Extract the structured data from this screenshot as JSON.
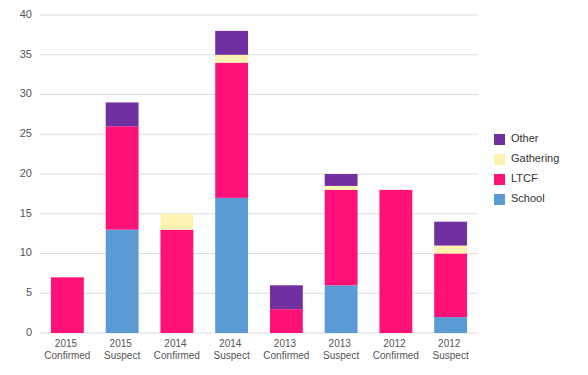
{
  "chart_data": {
    "type": "bar",
    "stacked": true,
    "categories": [
      "2015 Confirmed",
      "2015 Suspect",
      "2014 Confirmed",
      "2014 Suspect",
      "2013 Confirmed",
      "2013 Suspect",
      "2012 Confirmed",
      "2012 Suspect"
    ],
    "series": [
      {
        "name": "School",
        "color": "#5b9bd5",
        "values": [
          0,
          13,
          0,
          17,
          0,
          6,
          0,
          2
        ]
      },
      {
        "name": "LTCF",
        "color": "#ff1177",
        "values": [
          7,
          13,
          13,
          17,
          3,
          12,
          18,
          8
        ]
      },
      {
        "name": "Gathering",
        "color": "#fdf2b0",
        "values": [
          0,
          0,
          2,
          1,
          0,
          0.5,
          0,
          1
        ]
      },
      {
        "name": "Other",
        "color": "#7030a0",
        "values": [
          0,
          3,
          0,
          3,
          3,
          1.5,
          0,
          3
        ]
      }
    ],
    "ylim": [
      0,
      40
    ],
    "yticks": [
      0,
      5,
      10,
      15,
      20,
      25,
      30,
      35,
      40
    ],
    "grid": true,
    "legend": "right"
  }
}
